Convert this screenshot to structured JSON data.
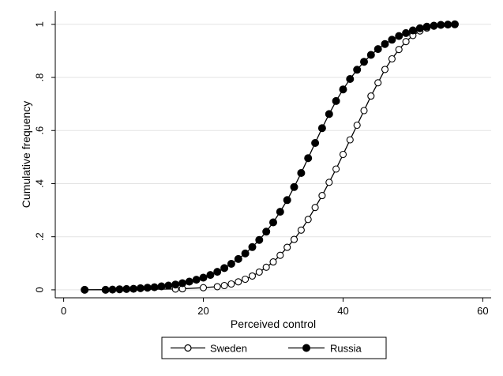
{
  "chart_data": {
    "type": "line",
    "title": "",
    "xlabel": "Perceived control",
    "ylabel": "Cumulative frequency",
    "xlim": [
      0,
      62
    ],
    "ylim": [
      -0.03,
      1.05
    ],
    "x_ticks": [
      0,
      20,
      40,
      60
    ],
    "x_tick_labels": [
      "0",
      "20",
      "40",
      "60"
    ],
    "y_ticks": [
      0,
      0.2,
      0.4,
      0.6,
      0.8,
      1
    ],
    "y_tick_labels": [
      "0",
      ".2",
      ".4",
      ".6",
      ".8",
      "1"
    ],
    "grid": true,
    "legend_position": "bottom",
    "series": [
      {
        "name": "Sweden",
        "marker": "hollow-circle",
        "color": "#000000",
        "x": [
          3,
          16,
          17,
          20,
          22,
          23,
          24,
          25,
          26,
          27,
          28,
          29,
          30,
          31,
          32,
          33,
          34,
          35,
          36,
          37,
          38,
          39,
          40,
          41,
          42,
          43,
          44,
          45,
          46,
          47,
          48,
          49,
          50,
          51,
          52,
          53,
          54,
          55,
          56
        ],
        "y": [
          0,
          0.003,
          0.004,
          0.008,
          0.012,
          0.016,
          0.022,
          0.03,
          0.04,
          0.052,
          0.067,
          0.085,
          0.105,
          0.13,
          0.16,
          0.19,
          0.225,
          0.265,
          0.31,
          0.355,
          0.405,
          0.455,
          0.51,
          0.565,
          0.62,
          0.675,
          0.73,
          0.78,
          0.83,
          0.87,
          0.905,
          0.935,
          0.958,
          0.975,
          0.986,
          0.993,
          0.997,
          0.999,
          1
        ]
      },
      {
        "name": "Russia",
        "marker": "filled-circle",
        "color": "#000000",
        "x": [
          3,
          6,
          7,
          8,
          9,
          10,
          11,
          12,
          13,
          14,
          15,
          16,
          17,
          18,
          19,
          20,
          21,
          22,
          23,
          24,
          25,
          26,
          27,
          28,
          29,
          30,
          31,
          32,
          33,
          34,
          35,
          36,
          37,
          38,
          39,
          40,
          41,
          42,
          43,
          44,
          45,
          46,
          47,
          48,
          49,
          50,
          51,
          52,
          53,
          54,
          55,
          56
        ],
        "y": [
          0,
          0,
          0.001,
          0.002,
          0.003,
          0.004,
          0.006,
          0.008,
          0.01,
          0.013,
          0.016,
          0.02,
          0.025,
          0.031,
          0.038,
          0.046,
          0.056,
          0.068,
          0.082,
          0.098,
          0.116,
          0.137,
          0.161,
          0.188,
          0.219,
          0.254,
          0.294,
          0.338,
          0.387,
          0.44,
          0.496,
          0.553,
          0.609,
          0.662,
          0.711,
          0.755,
          0.794,
          0.829,
          0.859,
          0.885,
          0.907,
          0.926,
          0.942,
          0.956,
          0.967,
          0.977,
          0.985,
          0.991,
          0.995,
          0.998,
          0.999,
          1
        ]
      }
    ]
  }
}
